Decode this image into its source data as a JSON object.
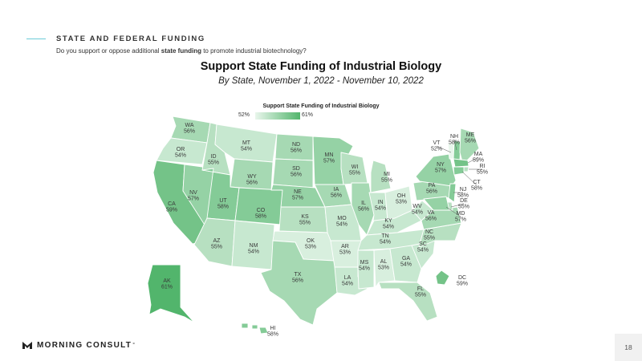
{
  "header": {
    "section_title": "STATE AND FEDERAL FUNDING",
    "question_pre": "Do you support or oppose additional ",
    "question_bold": "state funding",
    "question_post": " to promote industrial biotechnology?"
  },
  "map": {
    "title": "Support State Funding of Industrial Biology",
    "subtitle": "By State, November 1, 2022 - November 10, 2022",
    "legend": {
      "title": "Support State Funding of Industrial Biology",
      "min_label": "52%",
      "max_label": "61%",
      "min_value": 52,
      "max_value": 61,
      "color_low": "#e9f6ec",
      "color_high": "#52b56c"
    },
    "states": [
      {
        "code": "WA",
        "value": 56,
        "label": "56%"
      },
      {
        "code": "OR",
        "value": 54,
        "label": "54%"
      },
      {
        "code": "CA",
        "value": 59,
        "label": "59%"
      },
      {
        "code": "NV",
        "value": 57,
        "label": "57%"
      },
      {
        "code": "ID",
        "value": 55,
        "label": "55%"
      },
      {
        "code": "MT",
        "value": 54,
        "label": "54%"
      },
      {
        "code": "WY",
        "value": 56,
        "label": "56%"
      },
      {
        "code": "UT",
        "value": 58,
        "label": "58%"
      },
      {
        "code": "CO",
        "value": 58,
        "label": "58%"
      },
      {
        "code": "AZ",
        "value": 55,
        "label": "55%"
      },
      {
        "code": "NM",
        "value": 54,
        "label": "54%"
      },
      {
        "code": "ND",
        "value": 56,
        "label": "56%"
      },
      {
        "code": "SD",
        "value": 56,
        "label": "56%"
      },
      {
        "code": "NE",
        "value": 57,
        "label": "57%"
      },
      {
        "code": "KS",
        "value": 55,
        "label": "55%"
      },
      {
        "code": "OK",
        "value": 53,
        "label": "53%"
      },
      {
        "code": "TX",
        "value": 56,
        "label": "56%"
      },
      {
        "code": "MN",
        "value": 57,
        "label": "57%"
      },
      {
        "code": "IA",
        "value": 56,
        "label": "56%"
      },
      {
        "code": "MO",
        "value": 54,
        "label": "54%"
      },
      {
        "code": "AR",
        "value": 53,
        "label": "53%"
      },
      {
        "code": "LA",
        "value": 54,
        "label": "54%"
      },
      {
        "code": "WI",
        "value": 55,
        "label": "55%"
      },
      {
        "code": "IL",
        "value": 56,
        "label": "56%"
      },
      {
        "code": "MI",
        "value": 55,
        "label": "55%"
      },
      {
        "code": "IN",
        "value": 54,
        "label": "54%"
      },
      {
        "code": "OH",
        "value": 53,
        "label": "53%"
      },
      {
        "code": "KY",
        "value": 54,
        "label": "54%"
      },
      {
        "code": "TN",
        "value": 54,
        "label": "54%"
      },
      {
        "code": "MS",
        "value": 54,
        "label": "54%"
      },
      {
        "code": "AL",
        "value": 53,
        "label": "53%"
      },
      {
        "code": "GA",
        "value": 54,
        "label": "54%"
      },
      {
        "code": "FL",
        "value": 55,
        "label": "55%"
      },
      {
        "code": "SC",
        "value": 54,
        "label": "54%"
      },
      {
        "code": "NC",
        "value": 55,
        "label": "55%"
      },
      {
        "code": "VA",
        "value": 56,
        "label": "56%"
      },
      {
        "code": "WV",
        "value": 54,
        "label": "54%"
      },
      {
        "code": "PA",
        "value": 56,
        "label": "56%"
      },
      {
        "code": "NY",
        "value": 57,
        "label": "57%"
      },
      {
        "code": "VT",
        "value": 52,
        "label": "52%"
      },
      {
        "code": "NH",
        "value": 58,
        "label": "58%"
      },
      {
        "code": "ME",
        "value": 56,
        "label": "56%"
      },
      {
        "code": "MA",
        "value": 59,
        "label": "59%"
      },
      {
        "code": "RI",
        "value": 55,
        "label": "55%"
      },
      {
        "code": "CT",
        "value": 58,
        "label": "58%"
      },
      {
        "code": "NJ",
        "value": 58,
        "label": "58%"
      },
      {
        "code": "DE",
        "value": 55,
        "label": "55%"
      },
      {
        "code": "MD",
        "value": 57,
        "label": "57%"
      },
      {
        "code": "DC",
        "value": 59,
        "label": "59%"
      },
      {
        "code": "AK",
        "value": 61,
        "label": "61%"
      },
      {
        "code": "HI",
        "value": 58,
        "label": "58%"
      }
    ]
  },
  "footer": {
    "logo_text": "MORNING CONSULT",
    "logo_mark": "°",
    "page_number": "18"
  }
}
